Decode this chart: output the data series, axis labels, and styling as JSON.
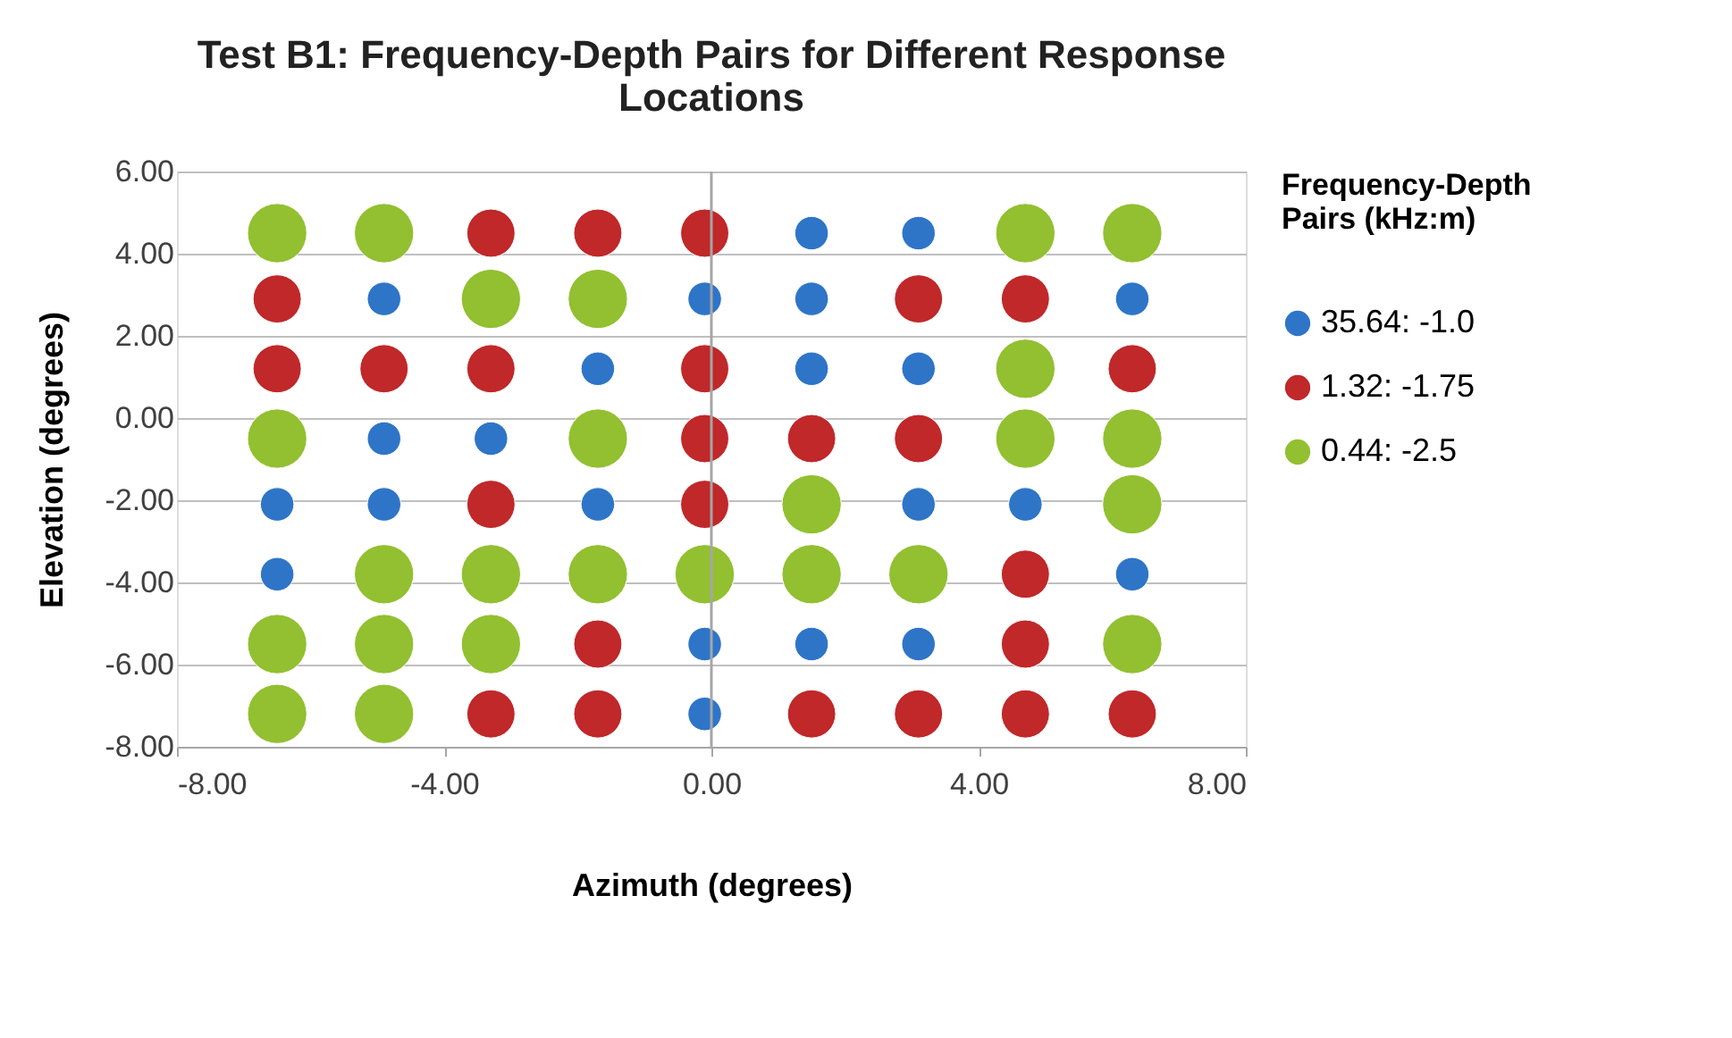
{
  "chart_data": {
    "type": "bubble",
    "title": "Test B1: Frequency-Depth Pairs for Different Response Locations",
    "xlabel": "Azimuth (degrees)",
    "ylabel": "Elevation (degrees)",
    "legend_title": "Frequency-Depth Pairs (kHz:m)",
    "xlim": [
      -8,
      8
    ],
    "xticks": [
      {
        "value": -8,
        "label": "-8.00"
      },
      {
        "value": -4,
        "label": "-4.00"
      },
      {
        "value": 0,
        "label": "0.00"
      },
      {
        "value": 4,
        "label": "4.00"
      },
      {
        "value": 8,
        "label": "8.00"
      }
    ],
    "ylim": [
      -8,
      6
    ],
    "yticks": [
      {
        "value": -8,
        "label": "-8.00"
      },
      {
        "value": -6,
        "label": "-6.00"
      },
      {
        "value": -4,
        "label": "-4.00"
      },
      {
        "value": -2,
        "label": "-2.00"
      },
      {
        "value": 0,
        "label": "0.00"
      },
      {
        "value": 2,
        "label": "2.00"
      },
      {
        "value": 4,
        "label": "4.00"
      },
      {
        "value": 6,
        "label": "6.00"
      }
    ],
    "grid": "y",
    "legend": "right",
    "marker": "circle",
    "ref_lines": [
      {
        "axis": "x",
        "value": 0,
        "color": "#a6a6a6"
      }
    ],
    "series": [
      {
        "name": "35.64: -1.0",
        "color": "#2e75c8",
        "x": [
          1.5,
          3.1,
          -4.9,
          -0.1,
          1.5,
          6.3,
          -1.7,
          1.5,
          3.1,
          -4.9,
          -3.3,
          -6.5,
          -4.9,
          -1.7,
          3.1,
          4.7,
          -6.5,
          6.3,
          -0.1,
          1.5,
          3.1,
          -0.1
        ],
        "values": [
          4.5,
          4.5,
          2.9,
          2.9,
          2.9,
          2.9,
          1.2,
          1.2,
          1.2,
          -0.5,
          -0.5,
          -2.1,
          -2.1,
          -2.1,
          -2.1,
          -2.1,
          -3.8,
          -3.8,
          -5.5,
          -5.5,
          -5.5,
          -7.2
        ],
        "sizes": [
          0.32,
          0.32,
          0.32,
          0.32,
          0.32,
          0.32,
          0.32,
          0.32,
          0.32,
          0.32,
          0.32,
          0.32,
          0.32,
          0.32,
          0.32,
          0.32,
          0.32,
          0.32,
          0.32,
          0.32,
          0.32,
          0.32
        ]
      },
      {
        "name": "1.32: -1.75",
        "color": "#c0282a",
        "x": [
          -3.3,
          -1.7,
          -0.1,
          -6.5,
          3.1,
          4.7,
          -6.5,
          -4.9,
          -3.3,
          -0.1,
          6.3,
          -0.1,
          1.5,
          3.1,
          -3.3,
          -0.1,
          4.7,
          -1.7,
          4.7,
          -3.3,
          -1.7,
          1.5,
          3.1,
          4.7,
          6.3
        ],
        "values": [
          4.5,
          4.5,
          4.5,
          2.9,
          2.9,
          2.9,
          1.2,
          1.2,
          1.2,
          1.2,
          1.2,
          -0.5,
          -0.5,
          -0.5,
          -2.1,
          -2.1,
          -3.8,
          -5.5,
          -5.5,
          -7.2,
          -7.2,
          -7.2,
          -7.2,
          -7.2,
          -7.2
        ],
        "sizes": [
          0.66,
          0.66,
          0.66,
          0.66,
          0.66,
          0.66,
          0.66,
          0.66,
          0.66,
          0.66,
          0.66,
          0.66,
          0.66,
          0.66,
          0.66,
          0.66,
          0.66,
          0.66,
          0.66,
          0.66,
          0.66,
          0.66,
          0.66,
          0.66,
          0.66
        ]
      },
      {
        "name": "0.44: -2.5",
        "color": "#92c030",
        "x": [
          -6.5,
          -4.9,
          4.7,
          6.3,
          -3.3,
          -1.7,
          4.7,
          -6.5,
          -1.7,
          4.7,
          6.3,
          1.5,
          6.3,
          -4.9,
          -3.3,
          -1.7,
          -0.1,
          1.5,
          3.1,
          -6.5,
          -4.9,
          -3.3,
          6.3,
          -6.5,
          -4.9
        ],
        "values": [
          4.5,
          4.5,
          4.5,
          4.5,
          2.9,
          2.9,
          1.2,
          -0.5,
          -0.5,
          -0.5,
          -0.5,
          -2.1,
          -2.1,
          -3.8,
          -3.8,
          -3.8,
          -3.8,
          -3.8,
          -3.8,
          -5.5,
          -5.5,
          -5.5,
          -5.5,
          -7.2,
          -7.2
        ],
        "sizes": [
          1,
          1,
          1,
          1,
          1,
          1,
          1,
          1,
          1,
          1,
          1,
          1,
          1,
          1,
          1,
          1,
          1,
          1,
          1,
          1,
          1,
          1,
          1,
          1,
          1
        ]
      }
    ]
  }
}
